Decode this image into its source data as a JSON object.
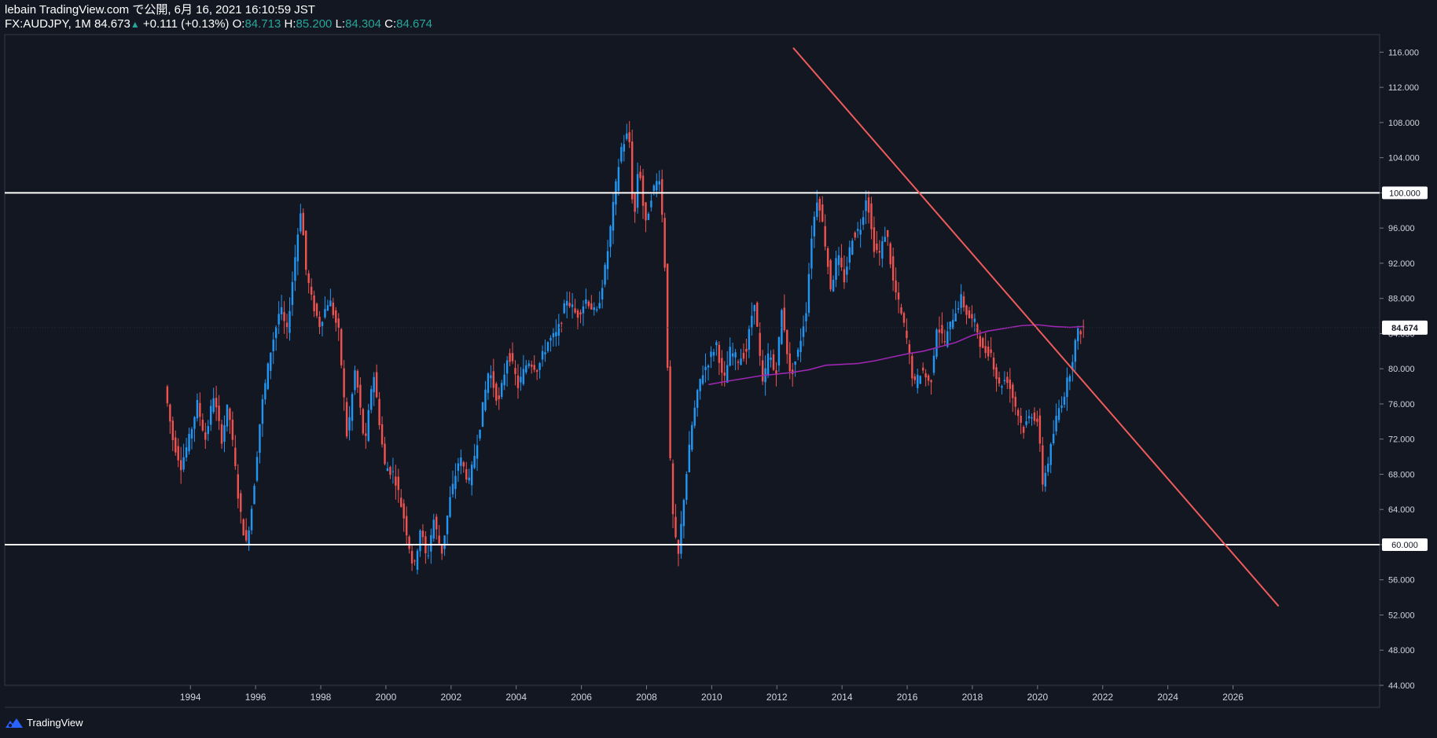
{
  "header": {
    "published": "lebain TradingView.com で公開, 6月 16, 2021 16:10:59 JST",
    "symbol": "FX:AUDJPY, 1M",
    "last": "84.673",
    "arrow": "▲",
    "change": "+0.111 (+0.13%)",
    "o_label": "O:",
    "o_value": "84.713",
    "h_label": "H:",
    "h_value": "85.200",
    "l_label": "L:",
    "l_value": "84.304",
    "c_label": "C:",
    "c_value": "84.674"
  },
  "footer": {
    "brand": "TradingView",
    "logo_icon": "tradingview-logo-icon"
  },
  "chart_data": {
    "type": "candlestick",
    "symbol": "FX:AUDJPY",
    "interval": "1M",
    "title": "AUDJPY Monthly",
    "x_range": [
      1988.3,
      2030.5
    ],
    "ylim": [
      44,
      118
    ],
    "y_ticks": [
      44,
      48,
      52,
      56,
      60,
      64,
      68,
      72,
      76,
      80,
      84,
      88,
      92,
      96,
      100,
      104,
      108,
      112,
      116
    ],
    "y_tick_labels": [
      "44.000",
      "48.000",
      "52.000",
      "56.000",
      "60.000",
      "64.000",
      "68.000",
      "72.000",
      "76.000",
      "80.000",
      "84.000",
      "88.000",
      "92.000",
      "96.000",
      "100.000",
      "104.000",
      "108.000",
      "112.000",
      "116.000"
    ],
    "x_ticks": [
      1994,
      1996,
      1998,
      2000,
      2002,
      2004,
      2006,
      2008,
      2010,
      2012,
      2014,
      2016,
      2018,
      2020,
      2022,
      2024,
      2026
    ],
    "up_color": "#2196f3",
    "down_color": "#ef5350",
    "price_path": [
      [
        1993.25,
        78
      ],
      [
        1993.5,
        72
      ],
      [
        1993.75,
        69
      ],
      [
        1994.0,
        72
      ],
      [
        1994.25,
        76
      ],
      [
        1994.5,
        72
      ],
      [
        1994.75,
        77
      ],
      [
        1995.0,
        72
      ],
      [
        1995.2,
        76
      ],
      [
        1995.35,
        71
      ],
      [
        1995.55,
        64
      ],
      [
        1995.75,
        60
      ],
      [
        1995.95,
        65
      ],
      [
        1996.2,
        75
      ],
      [
        1996.5,
        82
      ],
      [
        1996.8,
        87
      ],
      [
        1997.0,
        84
      ],
      [
        1997.2,
        91
      ],
      [
        1997.45,
        99
      ],
      [
        1997.55,
        92
      ],
      [
        1997.75,
        88
      ],
      [
        1998.0,
        85
      ],
      [
        1998.3,
        88
      ],
      [
        1998.6,
        84
      ],
      [
        1998.85,
        72
      ],
      [
        1999.1,
        80
      ],
      [
        1999.4,
        71
      ],
      [
        1999.65,
        80
      ],
      [
        2000.0,
        69
      ],
      [
        2000.3,
        68
      ],
      [
        2000.6,
        63
      ],
      [
        2000.9,
        57
      ],
      [
        2001.1,
        62
      ],
      [
        2001.3,
        58
      ],
      [
        2001.5,
        63
      ],
      [
        2001.75,
        59
      ],
      [
        2002.0,
        65
      ],
      [
        2002.3,
        70
      ],
      [
        2002.6,
        67
      ],
      [
        2002.9,
        73
      ],
      [
        2003.2,
        80
      ],
      [
        2003.5,
        76
      ],
      [
        2003.8,
        82
      ],
      [
        2004.1,
        78
      ],
      [
        2004.4,
        81
      ],
      [
        2004.7,
        80
      ],
      [
        2005.0,
        83
      ],
      [
        2005.3,
        84
      ],
      [
        2005.6,
        88
      ],
      [
        2005.9,
        86
      ],
      [
        2006.2,
        88
      ],
      [
        2006.5,
        86
      ],
      [
        2006.8,
        92
      ],
      [
        2007.0,
        98
      ],
      [
        2007.25,
        105
      ],
      [
        2007.5,
        107
      ],
      [
        2007.65,
        96
      ],
      [
        2007.8,
        104
      ],
      [
        2008.0,
        96
      ],
      [
        2008.2,
        100
      ],
      [
        2008.45,
        102
      ],
      [
        2008.6,
        92
      ],
      [
        2008.8,
        65
      ],
      [
        2009.0,
        58
      ],
      [
        2009.2,
        66
      ],
      [
        2009.45,
        74
      ],
      [
        2009.7,
        79
      ],
      [
        2009.95,
        81
      ],
      [
        2010.2,
        83
      ],
      [
        2010.4,
        78
      ],
      [
        2010.6,
        82
      ],
      [
        2010.85,
        81
      ],
      [
        2011.1,
        82
      ],
      [
        2011.35,
        88
      ],
      [
        2011.6,
        78
      ],
      [
        2011.8,
        82
      ],
      [
        2012.0,
        79
      ],
      [
        2012.2,
        87
      ],
      [
        2012.45,
        79
      ],
      [
        2012.7,
        82
      ],
      [
        2012.95,
        87
      ],
      [
        2013.1,
        95
      ],
      [
        2013.3,
        100
      ],
      [
        2013.5,
        95
      ],
      [
        2013.7,
        89
      ],
      [
        2013.9,
        93
      ],
      [
        2014.1,
        90
      ],
      [
        2014.35,
        95
      ],
      [
        2014.6,
        96
      ],
      [
        2014.8,
        100
      ],
      [
        2015.0,
        94
      ],
      [
        2015.2,
        93
      ],
      [
        2015.4,
        96
      ],
      [
        2015.6,
        90
      ],
      [
        2015.8,
        87
      ],
      [
        2016.0,
        84
      ],
      [
        2016.25,
        78
      ],
      [
        2016.5,
        80
      ],
      [
        2016.75,
        78
      ],
      [
        2016.95,
        85
      ],
      [
        2017.2,
        83
      ],
      [
        2017.45,
        86
      ],
      [
        2017.7,
        88
      ],
      [
        2017.9,
        86
      ],
      [
        2018.15,
        85
      ],
      [
        2018.35,
        82
      ],
      [
        2018.6,
        82
      ],
      [
        2018.85,
        78
      ],
      [
        2019.1,
        79
      ],
      [
        2019.35,
        76
      ],
      [
        2019.6,
        73
      ],
      [
        2019.85,
        75
      ],
      [
        2020.05,
        74
      ],
      [
        2020.2,
        67
      ],
      [
        2020.4,
        70
      ],
      [
        2020.65,
        75
      ],
      [
        2020.85,
        77
      ],
      [
        2021.05,
        80
      ],
      [
        2021.25,
        84
      ],
      [
        2021.45,
        84.67
      ]
    ],
    "moving_average": {
      "color": "#9c27b0",
      "points": [
        [
          2009.9,
          78.2
        ],
        [
          2010.5,
          78.6
        ],
        [
          2011.0,
          78.9
        ],
        [
          2011.5,
          79.2
        ],
        [
          2012.0,
          79.4
        ],
        [
          2012.5,
          79.6
        ],
        [
          2013.0,
          79.9
        ],
        [
          2013.5,
          80.4
        ],
        [
          2014.0,
          80.5
        ],
        [
          2014.5,
          80.6
        ],
        [
          2015.0,
          80.9
        ],
        [
          2015.5,
          81.3
        ],
        [
          2016.0,
          81.7
        ],
        [
          2016.5,
          82.0
        ],
        [
          2017.0,
          82.5
        ],
        [
          2017.5,
          83.0
        ],
        [
          2018.0,
          83.8
        ],
        [
          2018.5,
          84.3
        ],
        [
          2019.0,
          84.6
        ],
        [
          2019.5,
          84.9
        ],
        [
          2020.0,
          85.0
        ],
        [
          2020.5,
          84.8
        ],
        [
          2021.0,
          84.7
        ],
        [
          2021.4,
          84.8
        ]
      ]
    },
    "trendline": {
      "color": "#f25b5b",
      "from": [
        2012.5,
        116.5
      ],
      "to": [
        2027.4,
        53.0
      ]
    },
    "horizontal_levels": [
      {
        "value": 100,
        "label": "100.000",
        "color": "#ffffff"
      },
      {
        "value": 60,
        "label": "60.000",
        "color": "#ffffff"
      }
    ],
    "last_price": {
      "value": 84.674,
      "label": "84.674"
    }
  }
}
